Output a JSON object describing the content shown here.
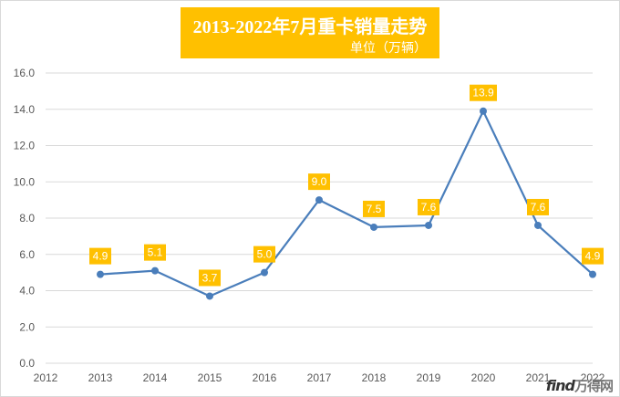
{
  "title": "2013-2022年7月重卡销量走势",
  "subtitle": "单位（万辆）",
  "watermark": {
    "logo": "find",
    "cn": "万得网"
  },
  "colors": {
    "accent": "#ffc000",
    "line": "#4a7ebb",
    "grid": "#d9d9d9",
    "axis_text": "#595959"
  },
  "chart_data": {
    "type": "line",
    "title": "2013-2022年7月重卡销量走势",
    "unit_note": "单位（万辆）",
    "x_ticks": [
      "2012",
      "2013",
      "2014",
      "2015",
      "2016",
      "2017",
      "2018",
      "2019",
      "2020",
      "2021",
      "2022"
    ],
    "y_ticks": [
      "0.0",
      "2.0",
      "4.0",
      "6.0",
      "8.0",
      "10.0",
      "12.0",
      "14.0",
      "16.0"
    ],
    "ylim": [
      0,
      16
    ],
    "xlim": [
      2012,
      2022
    ],
    "grid": "horizontal",
    "series": [
      {
        "points": [
          {
            "x": 2013,
            "y": 4.9,
            "label": "4.9"
          },
          {
            "x": 2014,
            "y": 5.1,
            "label": "5.1"
          },
          {
            "x": 2015,
            "y": 3.7,
            "label": "3.7"
          },
          {
            "x": 2016,
            "y": 5.0,
            "label": "5.0"
          },
          {
            "x": 2017,
            "y": 9.0,
            "label": "9.0"
          },
          {
            "x": 2018,
            "y": 7.5,
            "label": "7.5"
          },
          {
            "x": 2019,
            "y": 7.6,
            "label": "7.6"
          },
          {
            "x": 2020,
            "y": 13.9,
            "label": "13.9"
          },
          {
            "x": 2021,
            "y": 7.6,
            "label": "7.6"
          },
          {
            "x": 2022,
            "y": 4.9,
            "label": "4.9"
          }
        ]
      }
    ]
  }
}
